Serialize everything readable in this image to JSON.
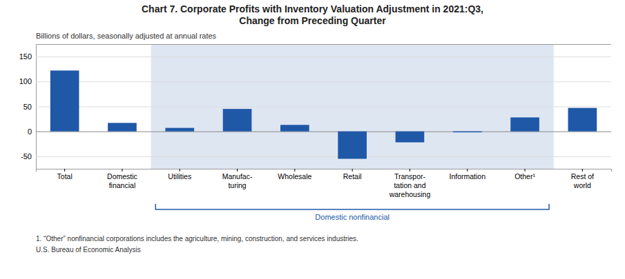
{
  "chart_data": {
    "type": "bar",
    "title": "Chart 7. Corporate Profits with Inventory Valuation Adjustment in 2021:Q3,\nChange from Preceding Quarter",
    "subtitle": "Billions of dollars, seasonally adjusted at annual rates",
    "categories": [
      "Total",
      "Domestic\nfinancial",
      "Utilities",
      "Manufac-\nturing",
      "Wholesale",
      "Retail",
      "Transpor-\ntation and\nwarehousing",
      "Information",
      "Other¹",
      "Rest of\nworld"
    ],
    "values": [
      122,
      17,
      7,
      45,
      13,
      -55,
      -22,
      -2,
      28,
      47
    ],
    "color": "#2058a8",
    "ylim": [
      -75,
      175
    ],
    "yticks": [
      -50,
      0,
      50,
      100,
      150
    ],
    "grid": true,
    "annotations": [
      {
        "text": "Domestic nonfinancial",
        "from": "Utilities",
        "to": "Other¹",
        "color": "#2058a8"
      },
      {
        "text": "1. “Other” nonfinancial corporations includes the agriculture, mining, construction, and services industries."
      },
      {
        "text": "U.S. Bureau of Economic Analysis"
      }
    ]
  }
}
